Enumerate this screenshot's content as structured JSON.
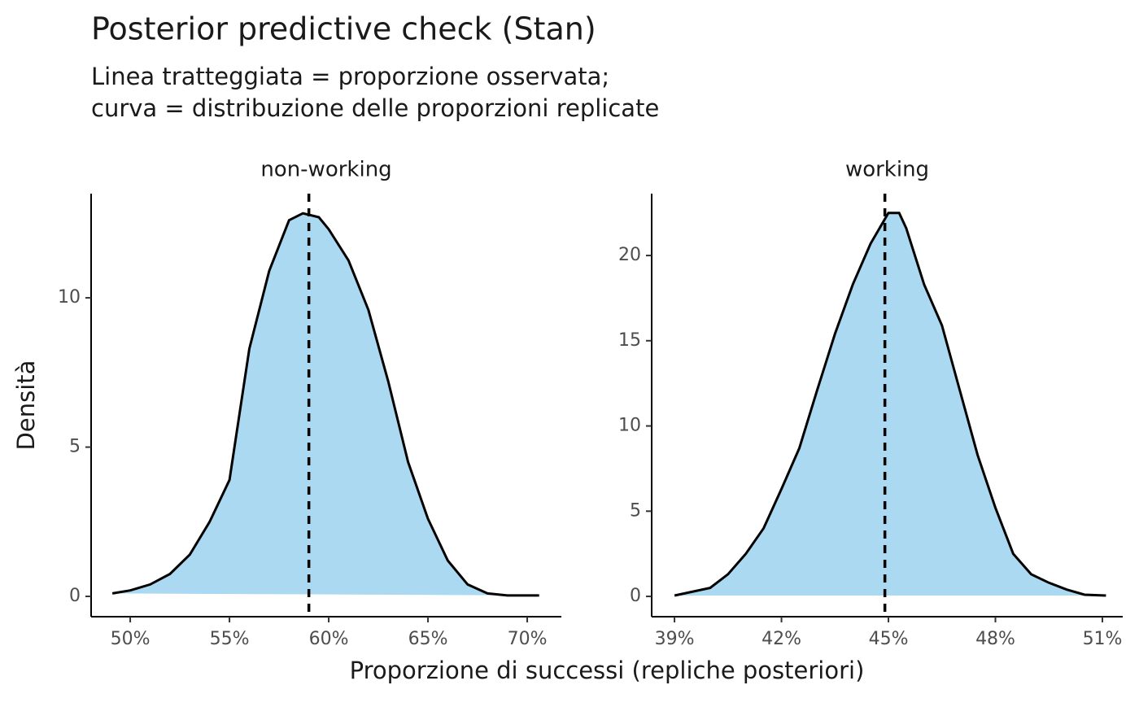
{
  "title": "Posterior predictive check (Stan)",
  "subtitle": [
    "Linea tratteggiata = proporzione osservata;",
    "curva = distribuzione delle proporzioni replicate"
  ],
  "x_label": "Proporzione di successi (repliche posteriori)",
  "y_label": "Densità",
  "chart_data": [
    {
      "type": "area",
      "facet": "non-working",
      "color": "#abd9f2",
      "line_color": "#000000",
      "x": [
        49.1,
        50,
        51,
        52,
        53,
        54,
        55,
        56,
        57,
        58,
        58.7,
        59.5,
        60,
        61,
        62,
        63,
        64,
        65,
        66,
        67,
        68,
        69,
        70.6
      ],
      "values": [
        0.1,
        0.2,
        0.4,
        0.75,
        1.4,
        2.5,
        3.9,
        8.3,
        10.9,
        12.6,
        12.83,
        12.7,
        12.3,
        11.25,
        9.6,
        7.2,
        4.5,
        2.6,
        1.2,
        0.4,
        0.1,
        0.03,
        0.03
      ],
      "observed": 59,
      "xlim": [
        48.03,
        71.72
      ],
      "ylim": [
        -0.68,
        13.49
      ],
      "xticks": [
        {
          "value": 50,
          "label": "50%"
        },
        {
          "value": 55,
          "label": "55%"
        },
        {
          "value": 60,
          "label": "60%"
        },
        {
          "value": 65,
          "label": "65%"
        },
        {
          "value": 70,
          "label": "70%"
        }
      ],
      "yticks": [
        0,
        5,
        10
      ]
    },
    {
      "type": "area",
      "facet": "working",
      "color": "#abd9f2",
      "line_color": "#000000",
      "x": [
        39.0,
        40,
        40.5,
        41,
        41.5,
        42,
        42.5,
        43,
        43.5,
        44,
        44.5,
        45,
        45.3,
        45.5,
        46,
        46.5,
        47,
        47.5,
        48,
        48.5,
        49,
        49.5,
        50,
        50.5,
        51.1
      ],
      "values": [
        0.05,
        0.5,
        1.3,
        2.5,
        4.0,
        6.3,
        8.7,
        12.1,
        15.4,
        18.3,
        20.7,
        22.5,
        22.5,
        21.6,
        18.3,
        15.9,
        12.1,
        8.3,
        5.2,
        2.5,
        1.3,
        0.8,
        0.4,
        0.1,
        0.05
      ],
      "observed": 44.9,
      "xlim": [
        38.36,
        51.57
      ],
      "ylim": [
        -1.19,
        23.63
      ],
      "xticks": [
        {
          "value": 39,
          "label": "39%"
        },
        {
          "value": 42,
          "label": "42%"
        },
        {
          "value": 45,
          "label": "45%"
        },
        {
          "value": 48,
          "label": "48%"
        },
        {
          "value": 51,
          "label": "51%"
        }
      ],
      "yticks": [
        0,
        5,
        10,
        15,
        20
      ]
    }
  ]
}
